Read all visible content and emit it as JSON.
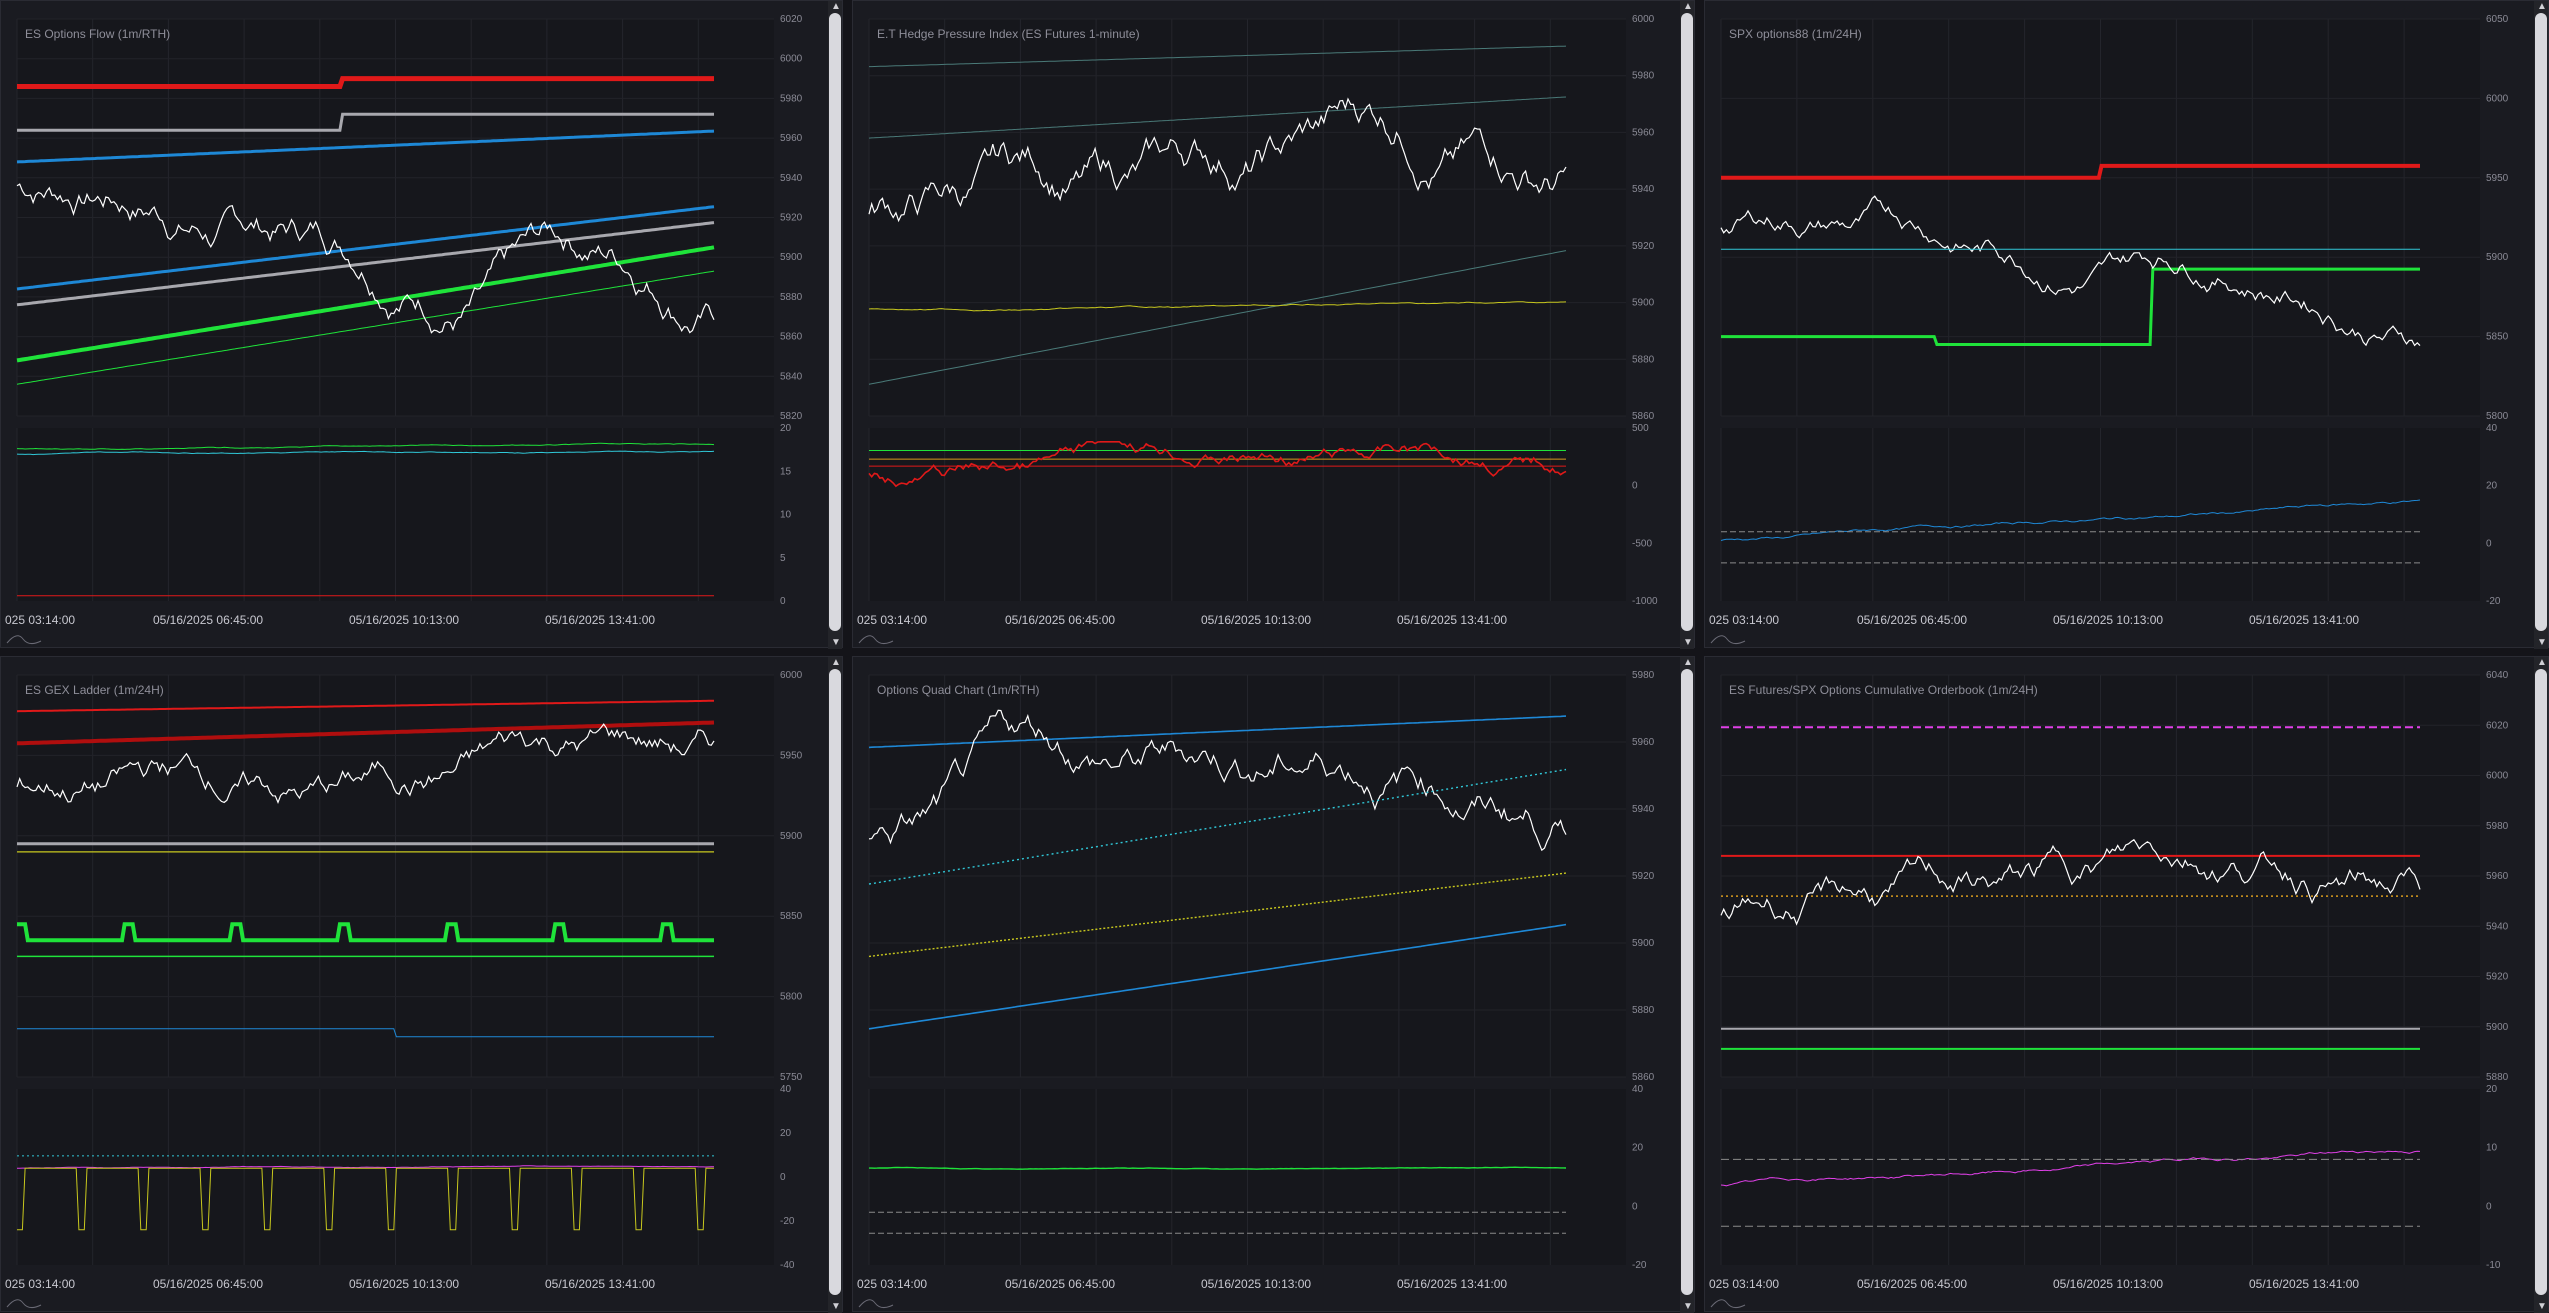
{
  "panels": [
    {
      "id": "p1",
      "title": "ES Options Flow (1m/RTH)",
      "upper_ticks": [
        "6020",
        "6000",
        "5980",
        "5960",
        "5940",
        "5920",
        "5900",
        "5880",
        "5860",
        "5840",
        "5820"
      ],
      "lower_ticks": [
        "20",
        "15",
        "10",
        "5",
        "0"
      ],
      "x_ticks": [
        "025 03:14:00",
        "05/16/2025 06:45:00",
        "05/16/2025 10:13:00",
        "05/16/2025 13:41:00"
      ]
    },
    {
      "id": "p2",
      "title": "E.T Hedge Pressure Index (ES Futures 1-minute)",
      "upper_ticks": [
        "6000",
        "5980",
        "5960",
        "5940",
        "5920",
        "5900",
        "5880",
        "5860"
      ],
      "lower_ticks": [
        "500",
        "0",
        "-500",
        "-1000"
      ],
      "x_ticks": [
        "025 03:14:00",
        "05/16/2025 06:45:00",
        "05/16/2025 10:13:00",
        "05/16/2025 13:41:00"
      ]
    },
    {
      "id": "p3",
      "title": "SPX options88 (1m/24H)",
      "upper_ticks": [
        "6050",
        "6000",
        "5950",
        "5900",
        "5850",
        "5800"
      ],
      "lower_ticks": [
        "40",
        "20",
        "0",
        "-20"
      ],
      "x_ticks": [
        "025 03:14:00",
        "05/16/2025 06:45:00",
        "05/16/2025 10:13:00",
        "05/16/2025 13:41:00"
      ]
    },
    {
      "id": "p4",
      "title": "ES GEX Ladder (1m/24H)",
      "upper_ticks": [
        "6000",
        "5950",
        "5900",
        "5850",
        "5800",
        "5750"
      ],
      "lower_ticks": [
        "40",
        "20",
        "0",
        "-20",
        "-40"
      ],
      "x_ticks": [
        "025 03:14:00",
        "05/16/2025 06:45:00",
        "05/16/2025 10:13:00",
        "05/16/2025 13:41:00"
      ]
    },
    {
      "id": "p5",
      "title": "Options Quad Chart (1m/RTH)",
      "upper_ticks": [
        "5980",
        "5960",
        "5940",
        "5920",
        "5900",
        "5880",
        "5860"
      ],
      "lower_ticks": [
        "40",
        "20",
        "0",
        "-20"
      ],
      "x_ticks": [
        "025 03:14:00",
        "05/16/2025 06:45:00",
        "05/16/2025 10:13:00",
        "05/16/2025 13:41:00"
      ]
    },
    {
      "id": "p6",
      "title": "ES Futures/SPX Options Cumulative Orderbook (1m/24H)",
      "upper_ticks": [
        "6040",
        "6020",
        "6000",
        "5980",
        "5960",
        "5940",
        "5920",
        "5900",
        "5880"
      ],
      "lower_ticks": [
        "20",
        "10",
        "0",
        "-10"
      ],
      "x_ticks": [
        "025 03:14:00",
        "05/16/2025 06:45:00",
        "05/16/2025 10:13:00",
        "05/16/2025 13:41:00"
      ]
    }
  ],
  "colors": {
    "price": "#ffffff",
    "red": "#e01919",
    "darkred": "#b00e0e",
    "blue": "#1e88d6",
    "gray": "#a8a8ae",
    "green": "#1fe33a",
    "olive": "#c8c81e",
    "magenta": "#e040e8",
    "cyan": "#30c8d8",
    "orange": "#d89a1c"
  }
}
